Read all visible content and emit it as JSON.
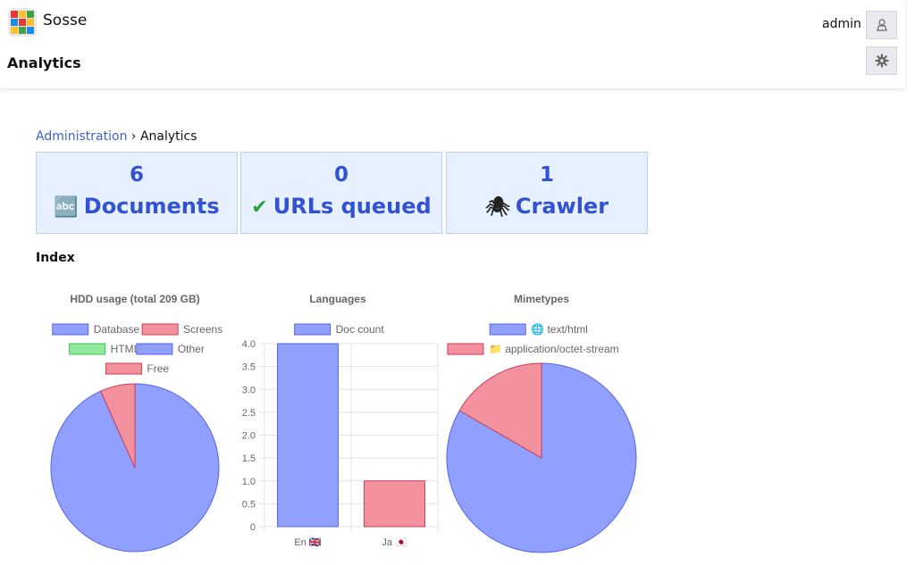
{
  "header": {
    "app_name": "Sosse",
    "page_title": "Analytics",
    "user_name": "admin"
  },
  "breadcrumb": {
    "parent": "Administration",
    "separator": "›",
    "current": "Analytics"
  },
  "stats": [
    {
      "value": "6",
      "icon": "🔤",
      "label": "Documents"
    },
    {
      "value": "0",
      "icon": "✔",
      "label": "URLs queued"
    },
    {
      "value": "1",
      "icon": "🕷",
      "label": "Crawler"
    }
  ],
  "section": {
    "title": "Index"
  },
  "colors": {
    "blue_fill": "#919ffe",
    "blue_border": "#5566e6",
    "red_fill": "#f4919f",
    "red_border": "#d03a52",
    "green_fill": "#8fea9b",
    "green_border": "#3cc356",
    "card_bg": "#e6f0ff",
    "card_text": "#3352d3",
    "link": "#3c5fd6"
  },
  "chart_data": [
    {
      "type": "pie",
      "title": "HDD usage (total 209 GB)",
      "legend": [
        {
          "label": "Database",
          "color": "blue"
        },
        {
          "label": "Screens",
          "color": "red"
        },
        {
          "label": "HTML",
          "color": "green"
        },
        {
          "label": "Other",
          "color": "blue"
        },
        {
          "label": "Free",
          "color": "red"
        }
      ],
      "slices": [
        {
          "label": "Database",
          "value": 0
        },
        {
          "label": "Screens",
          "value": 0
        },
        {
          "label": "HTML",
          "value": 0
        },
        {
          "label": "Other",
          "value": 195
        },
        {
          "label": "Free",
          "value": 14
        }
      ]
    },
    {
      "type": "bar",
      "title": "Languages",
      "legend": [
        {
          "label": "Doc count",
          "color": "blue"
        }
      ],
      "categories": [
        "En 🇬🇧",
        "Ja 🇯🇵"
      ],
      "values": [
        4,
        1
      ],
      "ylim": [
        0,
        4
      ],
      "yticks": [
        "4.0",
        "3.5",
        "3.0",
        "2.5",
        "2.0",
        "1.5",
        "1.0",
        "0.5",
        "0"
      ],
      "grid": true
    },
    {
      "type": "pie",
      "title": "Mimetypes",
      "legend": [
        {
          "label": "🌐 text/html",
          "color": "blue"
        },
        {
          "label": "📁 application/octet-stream",
          "color": "red"
        }
      ],
      "slices": [
        {
          "label": "🌐 text/html",
          "value": 5
        },
        {
          "label": "📁 application/octet-stream",
          "value": 1
        }
      ]
    }
  ]
}
